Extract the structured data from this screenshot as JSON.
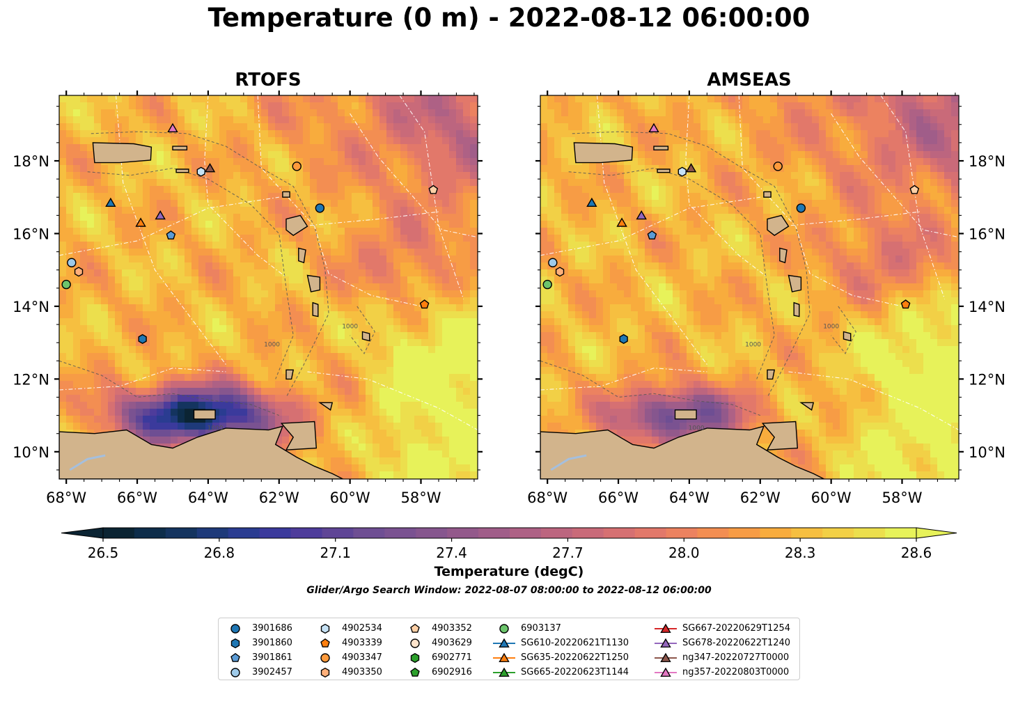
{
  "title": "Temperature (0 m) - 2022-08-12 06:00:00",
  "colors": {
    "land": "#d2b48c",
    "river": "#a5bfdd",
    "grid": "#ffffff",
    "bathymetry_contour": "#555555"
  },
  "chart_data": [
    {
      "type": "heatmap",
      "title": "RTOFS",
      "variable": "Temperature (degC)",
      "depth": "0 m",
      "xlim": [
        -68.2,
        -56.4
      ],
      "ylim": [
        9.25,
        19.8
      ],
      "x_ticks": [
        "68°W",
        "66°W",
        "64°W",
        "62°W",
        "60°W",
        "58°W"
      ],
      "y_ticks": [
        "10°N",
        "12°N",
        "14°N",
        "16°N",
        "18°N"
      ],
      "x_tick_values": [
        -68,
        -66,
        -64,
        -62,
        -60,
        -58
      ],
      "y_tick_values": [
        10,
        12,
        14,
        16,
        18
      ],
      "y_axis_side": "left",
      "contour_label": "1000"
    },
    {
      "type": "heatmap",
      "title": "AMSEAS",
      "variable": "Temperature (degC)",
      "depth": "0 m",
      "xlim": [
        -68.2,
        -56.4
      ],
      "ylim": [
        9.25,
        19.8
      ],
      "x_ticks": [
        "68°W",
        "66°W",
        "64°W",
        "62°W",
        "60°W",
        "58°W"
      ],
      "y_ticks": [
        "10°N",
        "12°N",
        "14°N",
        "16°N",
        "18°N"
      ],
      "x_tick_values": [
        -68,
        -66,
        -64,
        -62,
        -60,
        -58
      ],
      "y_tick_values": [
        10,
        12,
        14,
        16,
        18
      ],
      "y_axis_side": "right",
      "contour_label": "1000"
    }
  ],
  "colorbar": {
    "label": "Temperature (degC)",
    "min": 26.4,
    "max": 28.7,
    "ticks": [
      "26.5",
      "26.8",
      "27.1",
      "27.4",
      "27.7",
      "28.0",
      "28.3",
      "28.6"
    ],
    "tick_values": [
      26.5,
      26.8,
      27.1,
      27.4,
      27.7,
      28.0,
      28.3,
      28.6
    ],
    "extend": "both",
    "colors": [
      "#0b2433",
      "#0d2d4a",
      "#14345f",
      "#1e3a7a",
      "#2a3c91",
      "#3b3a9c",
      "#4e3c9b",
      "#5f4596",
      "#6e4e93",
      "#7a5291",
      "#86568e",
      "#93598b",
      "#a05d89",
      "#ae6185",
      "#bc657f",
      "#c96a79",
      "#d67072",
      "#e2786a",
      "#ec8260",
      "#f38e52",
      "#f79c45",
      "#f8ac3d",
      "#f6bf40",
      "#f2d046",
      "#ecdf4d",
      "#e7f25a"
    ]
  },
  "search_window": "Glider/Argo Search Window: 2022-08-07 08:00:00 to 2022-08-12 06:00:00",
  "legend": [
    {
      "label": "3901686",
      "marker": "circle",
      "color": "#1f77b4",
      "line": false
    },
    {
      "label": "3901860",
      "marker": "hexagon",
      "color": "#1f77b4",
      "line": false
    },
    {
      "label": "3901861",
      "marker": "pentagon",
      "color": "#5b9bd5",
      "line": false
    },
    {
      "label": "3902457",
      "marker": "circle",
      "color": "#9ecae9",
      "line": false
    },
    {
      "label": "4902534",
      "marker": "hexagon",
      "color": "#c6e2f5",
      "line": false
    },
    {
      "label": "4903339",
      "marker": "pentagon",
      "color": "#ff7f0e",
      "line": false
    },
    {
      "label": "4903347",
      "marker": "circle",
      "color": "#ff9a3c",
      "line": false
    },
    {
      "label": "4903350",
      "marker": "hexagon",
      "color": "#ffb07a",
      "line": false
    },
    {
      "label": "4903352",
      "marker": "pentagon",
      "color": "#ffd0a6",
      "line": false
    },
    {
      "label": "4903629",
      "marker": "circle",
      "color": "#ffe4cc",
      "line": false
    },
    {
      "label": "6902771",
      "marker": "hexagon",
      "color": "#2ca02c",
      "line": false
    },
    {
      "label": "6902916",
      "marker": "pentagon",
      "color": "#2ca02c",
      "line": false
    },
    {
      "label": "6903137",
      "marker": "circle",
      "color": "#6cc56c",
      "line": false
    },
    {
      "label": "SG610-20220621T1130",
      "marker": "triangle",
      "color": "#1f77b4",
      "line": true
    },
    {
      "label": "SG635-20220622T1250",
      "marker": "triangle",
      "color": "#ff7f0e",
      "line": true
    },
    {
      "label": "SG665-20220623T1144",
      "marker": "triangle",
      "color": "#2ca02c",
      "line": true
    },
    {
      "label": "SG667-20220629T1254",
      "marker": "triangle",
      "color": "#d62728",
      "line": true
    },
    {
      "label": "SG678-20220622T1240",
      "marker": "triangle",
      "color": "#9467bd",
      "line": true
    },
    {
      "label": "ng347-20220727T0000",
      "marker": "triangle",
      "color": "#8c564b",
      "line": true
    },
    {
      "label": "ng357-20220803T0000",
      "marker": "triangle",
      "color": "#e377c2",
      "line": true
    }
  ],
  "observations": [
    {
      "id": "3901686",
      "lon": -60.85,
      "lat": 16.7
    },
    {
      "id": "3901860",
      "lon": -65.85,
      "lat": 13.1
    },
    {
      "id": "3901861",
      "lon": -65.05,
      "lat": 15.95
    },
    {
      "id": "3902457",
      "lon": -67.85,
      "lat": 15.2
    },
    {
      "id": "4902534",
      "lon": -64.2,
      "lat": 17.7
    },
    {
      "id": "4903339",
      "lon": -57.9,
      "lat": 14.05
    },
    {
      "id": "4903347",
      "lon": -61.5,
      "lat": 17.85
    },
    {
      "id": "4903350",
      "lon": -67.65,
      "lat": 14.95
    },
    {
      "id": "4903352",
      "lon": -57.65,
      "lat": 17.2
    },
    {
      "id": "6903137",
      "lon": -68.0,
      "lat": 14.6
    },
    {
      "id": "SG610-20220621T1130",
      "lon": -66.75,
      "lat": 16.85
    },
    {
      "id": "SG635-20220622T1250",
      "lon": -65.9,
      "lat": 16.3
    },
    {
      "id": "SG678-20220622T1240",
      "lon": -65.35,
      "lat": 16.5
    },
    {
      "id": "ng347-20220727T0000",
      "lon": -63.95,
      "lat": 17.8
    },
    {
      "id": "ng357-20220803T0000",
      "lon": -65.0,
      "lat": 18.9
    }
  ]
}
